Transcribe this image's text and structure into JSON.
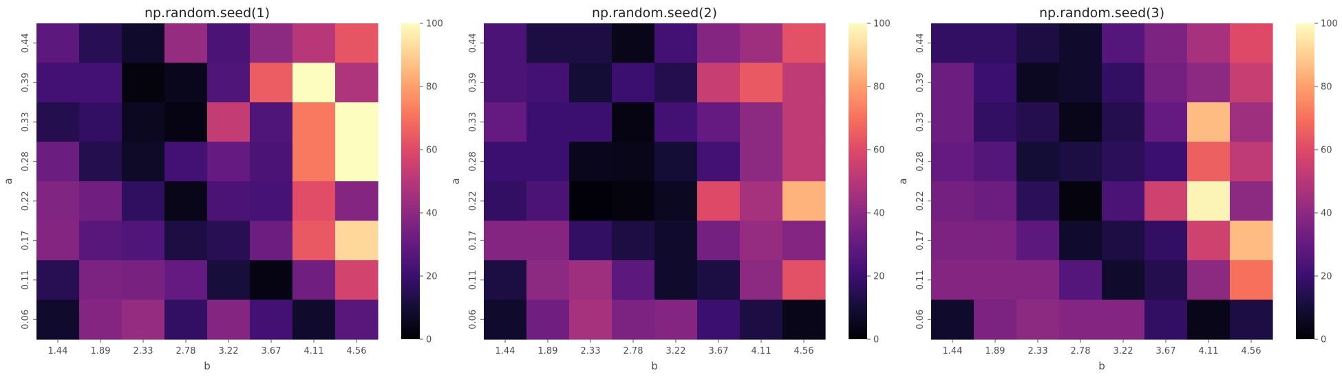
{
  "chart_data": [
    {
      "type": "heatmap",
      "title": "np.random.seed(1)",
      "xlabel": "b",
      "ylabel": "a",
      "x": [
        "1.44",
        "1.89",
        "2.33",
        "2.78",
        "3.22",
        "3.67",
        "4.11",
        "4.56"
      ],
      "y": [
        "0.44",
        "0.39",
        "0.33",
        "0.28",
        "0.22",
        "0.17",
        "0.11",
        "0.06"
      ],
      "values": [
        [
          28,
          15,
          8,
          42,
          24,
          40,
          50,
          63
        ],
        [
          22,
          22,
          2,
          5,
          25,
          65,
          100,
          48
        ],
        [
          14,
          18,
          6,
          3,
          53,
          25,
          72,
          100
        ],
        [
          32,
          14,
          7,
          22,
          30,
          24,
          72,
          100
        ],
        [
          37,
          33,
          17,
          4,
          24,
          23,
          61,
          38
        ],
        [
          38,
          27,
          25,
          12,
          15,
          32,
          64,
          92
        ],
        [
          15,
          36,
          35,
          30,
          11,
          3,
          33,
          57
        ],
        [
          8,
          38,
          42,
          18,
          38,
          22,
          8,
          27
        ]
      ],
      "colorbar": {
        "min": 0,
        "max": 100,
        "ticks": [
          0,
          20,
          40,
          60,
          80,
          100
        ]
      },
      "colormap": "magma"
    },
    {
      "type": "heatmap",
      "title": "np.random.seed(2)",
      "xlabel": "b",
      "ylabel": "a",
      "x": [
        "1.44",
        "1.89",
        "2.33",
        "2.78",
        "3.22",
        "3.67",
        "4.11",
        "4.56"
      ],
      "y": [
        "0.44",
        "0.39",
        "0.33",
        "0.28",
        "0.22",
        "0.17",
        "0.11",
        "0.06"
      ],
      "values": [
        [
          24,
          12,
          12,
          4,
          22,
          38,
          44,
          62
        ],
        [
          24,
          22,
          10,
          20,
          14,
          54,
          64,
          52
        ],
        [
          30,
          20,
          20,
          3,
          22,
          30,
          40,
          52
        ],
        [
          20,
          20,
          5,
          4,
          10,
          22,
          40,
          52
        ],
        [
          18,
          24,
          1,
          2,
          6,
          60,
          46,
          84
        ],
        [
          38,
          38,
          18,
          12,
          8,
          34,
          42,
          38
        ],
        [
          12,
          40,
          44,
          28,
          8,
          12,
          40,
          62
        ],
        [
          8,
          33,
          46,
          36,
          38,
          20,
          12,
          4
        ]
      ],
      "colorbar": {
        "min": 0,
        "max": 100,
        "ticks": [
          0,
          20,
          40,
          60,
          80,
          100
        ]
      },
      "colormap": "magma"
    },
    {
      "type": "heatmap",
      "title": "np.random.seed(3)",
      "xlabel": "b",
      "ylabel": "a",
      "x": [
        "1.44",
        "1.89",
        "2.33",
        "2.78",
        "3.22",
        "3.67",
        "4.11",
        "4.56"
      ],
      "y": [
        "0.44",
        "0.39",
        "0.33",
        "0.28",
        "0.22",
        "0.17",
        "0.11",
        "0.06"
      ],
      "values": [
        [
          18,
          18,
          12,
          8,
          26,
          36,
          46,
          60
        ],
        [
          32,
          20,
          6,
          8,
          18,
          34,
          40,
          54
        ],
        [
          32,
          18,
          14,
          4,
          14,
          30,
          86,
          44
        ],
        [
          30,
          26,
          10,
          12,
          16,
          20,
          66,
          52
        ],
        [
          34,
          32,
          16,
          2,
          24,
          56,
          98,
          40
        ],
        [
          36,
          36,
          28,
          8,
          12,
          18,
          56,
          86
        ],
        [
          38,
          38,
          38,
          26,
          8,
          14,
          40,
          70
        ],
        [
          8,
          36,
          40,
          38,
          38,
          18,
          4,
          12
        ]
      ],
      "colorbar": {
        "min": 0,
        "max": 100,
        "ticks": [
          0,
          20,
          40,
          60,
          80,
          100
        ]
      },
      "colormap": "magma"
    }
  ]
}
